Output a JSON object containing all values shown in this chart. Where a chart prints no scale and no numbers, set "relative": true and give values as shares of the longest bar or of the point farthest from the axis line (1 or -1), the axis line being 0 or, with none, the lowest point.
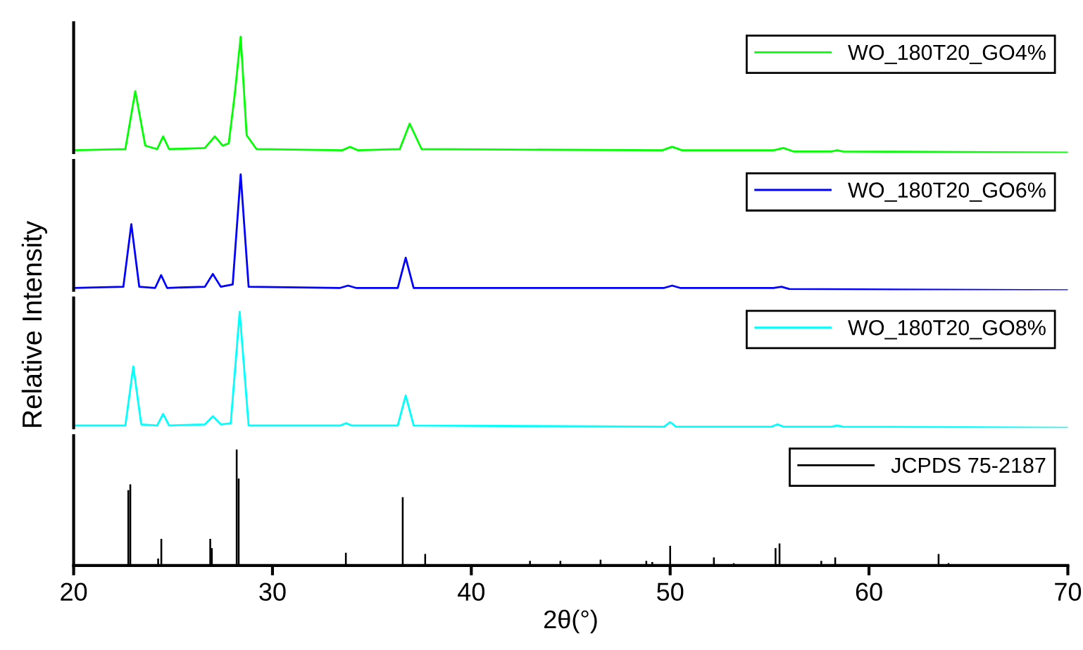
{
  "chart_data": [
    {
      "type": "line",
      "relative": true,
      "xlim": [
        20,
        70
      ],
      "tick_labels": false,
      "legend": "top right",
      "series": [
        {
          "name": "WO_180T20_GO4%",
          "color": "#00ff00",
          "x": [
            20,
            22.6,
            23.1,
            23.6,
            24.2,
            24.5,
            24.8,
            26.6,
            27.1,
            27.5,
            27.8,
            28.1,
            28.4,
            28.7,
            29.2,
            33.5,
            33.9,
            34.3,
            36.4,
            36.9,
            37.5,
            49.6,
            50.1,
            50.6,
            55.2,
            55.7,
            56.2,
            58.1,
            58.4,
            58.7,
            70
          ],
          "values": [
            0.02,
            0.03,
            0.53,
            0.06,
            0.03,
            0.14,
            0.03,
            0.04,
            0.14,
            0.06,
            0.08,
            0.5,
            1,
            0.15,
            0.03,
            0.02,
            0.05,
            0.02,
            0.03,
            0.25,
            0.03,
            0.02,
            0.05,
            0.02,
            0.02,
            0.04,
            0.01,
            0.01,
            0.02,
            0.01,
            0.0
          ]
        }
      ]
    },
    {
      "type": "line",
      "relative": true,
      "xlim": [
        20,
        70
      ],
      "tick_labels": false,
      "legend": "top right",
      "ylabel": "Relative Intensity",
      "series": [
        {
          "name": "WO_180T20_GO6%",
          "color": "#0000ff",
          "x": [
            20,
            22.5,
            22.9,
            23.3,
            24.1,
            24.4,
            24.7,
            26.6,
            27.0,
            27.4,
            28.0,
            28.4,
            28.8,
            33.4,
            33.8,
            34.2,
            36.3,
            36.7,
            37.1,
            49.7,
            50.1,
            50.5,
            55.2,
            55.6,
            56.0,
            70
          ],
          "values": [
            0.02,
            0.03,
            0.57,
            0.03,
            0.02,
            0.13,
            0.02,
            0.03,
            0.14,
            0.03,
            0.05,
            1,
            0.03,
            0.02,
            0.04,
            0.02,
            0.02,
            0.28,
            0.02,
            0.02,
            0.04,
            0.02,
            0.02,
            0.03,
            0.01,
            0.0
          ]
        }
      ]
    },
    {
      "type": "line",
      "relative": true,
      "xlim": [
        20,
        70
      ],
      "tick_labels": false,
      "legend": "top right",
      "series": [
        {
          "name": "WO_180T20_GO8%",
          "color": "#00ffff",
          "x": [
            20,
            22.6,
            23.0,
            23.4,
            24.2,
            24.5,
            24.8,
            26.6,
            27.0,
            27.4,
            27.9,
            28.35,
            28.8,
            33.4,
            33.7,
            34.0,
            36.3,
            36.7,
            37.1,
            49.7,
            50.0,
            50.3,
            55.1,
            55.4,
            55.7,
            58.1,
            58.4,
            58.7,
            70
          ],
          "values": [
            0.02,
            0.02,
            0.53,
            0.03,
            0.02,
            0.12,
            0.02,
            0.03,
            0.1,
            0.03,
            0.04,
            1,
            0.02,
            0.02,
            0.04,
            0.02,
            0.02,
            0.28,
            0.02,
            0.01,
            0.05,
            0.01,
            0.01,
            0.03,
            0.01,
            0.01,
            0.02,
            0.01,
            0.0
          ]
        }
      ]
    },
    {
      "type": "bar",
      "relative": true,
      "xlim": [
        20,
        70
      ],
      "xticks": [
        20,
        30,
        40,
        50,
        60,
        70
      ],
      "tick_labels": "x",
      "legend": "top right",
      "xlabel": "2θ(°)",
      "series": [
        {
          "name": "JCPDS 75-2187",
          "color": "#000000",
          "x": [
            22.75,
            22.85,
            24.25,
            24.41,
            26.87,
            26.95,
            28.2,
            28.3,
            33.69,
            36.55,
            37.68,
            42.95,
            44.48,
            46.5,
            48.8,
            49.1,
            50.0,
            52.2,
            53.2,
            55.3,
            55.5,
            57.6,
            58.3,
            63.5,
            64.0
          ],
          "values": [
            0.65,
            0.7,
            0.06,
            0.23,
            0.23,
            0.15,
            1,
            0.75,
            0.11,
            0.59,
            0.1,
            0.04,
            0.04,
            0.05,
            0.04,
            0.03,
            0.17,
            0.07,
            0.02,
            0.15,
            0.19,
            0.04,
            0.07,
            0.1,
            0.02
          ]
        }
      ]
    }
  ]
}
